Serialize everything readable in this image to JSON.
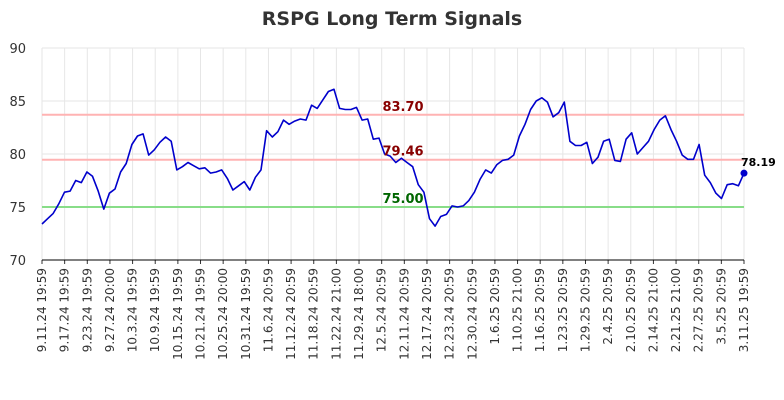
{
  "chart_data": {
    "type": "line",
    "title": "RSPG Long Term Signals",
    "xlabel": "",
    "ylabel": "",
    "ylim": [
      70,
      90
    ],
    "yticks": [
      70,
      75,
      80,
      85,
      90
    ],
    "grid": true,
    "colors": {
      "line": "#0000cc",
      "upper": "#ffb3b3",
      "lower": "#88dd88",
      "upper_label": "#880000",
      "lower_label": "#006600",
      "last_label": "#000000"
    },
    "x_tick_labels": [
      "9.11.24 19:59",
      "9.17.24 19:59",
      "9.23.24 19:59",
      "9.27.24 20:00",
      "10.3.24 19:59",
      "10.9.24 19:59",
      "10.15.24 19:59",
      "10.21.24 19:59",
      "10.25.24 20:00",
      "10.31.24 19:59",
      "11.6.24 20:59",
      "11.12.24 20:59",
      "11.18.24 20:59",
      "11.22.24 21:00",
      "11.29.24 18:00",
      "12.5.24 20:59",
      "12.11.24 20:59",
      "12.17.24 20:59",
      "12.23.24 20:59",
      "12.30.24 20:59",
      "1.6.25 20:59",
      "1.10.25 21:00",
      "1.16.25 20:59",
      "1.23.25 20:59",
      "1.29.25 20:59",
      "2.4.25 20:59",
      "2.10.25 20:59",
      "2.14.25 21:00",
      "2.21.25 21:00",
      "2.27.25 20:59",
      "3.5.25 20:59",
      "3.11.25 19:59"
    ],
    "values": [
      73.4,
      73.9,
      74.4,
      75.3,
      76.4,
      76.5,
      77.5,
      77.3,
      78.3,
      77.9,
      76.5,
      74.8,
      76.3,
      76.7,
      78.3,
      79.1,
      80.9,
      81.7,
      81.9,
      79.9,
      80.4,
      81.1,
      81.6,
      81.2,
      78.5,
      78.8,
      79.2,
      78.9,
      78.6,
      78.7,
      78.2,
      78.3,
      78.5,
      77.7,
      76.6,
      77.0,
      77.4,
      76.6,
      77.8,
      78.5,
      82.2,
      81.6,
      82.1,
      83.2,
      82.8,
      83.1,
      83.3,
      83.2,
      84.6,
      84.3,
      85.1,
      85.9,
      86.1,
      84.3,
      84.2,
      84.2,
      84.4,
      83.2,
      83.3,
      81.4,
      81.5,
      80.0,
      79.8,
      79.2,
      79.6,
      79.2,
      78.8,
      77.1,
      76.4,
      73.9,
      73.2,
      74.1,
      74.3,
      75.1,
      75.0,
      75.1,
      75.6,
      76.4,
      77.6,
      78.5,
      78.2,
      79.0,
      79.4,
      79.5,
      79.9,
      81.7,
      82.8,
      84.2,
      85.0,
      85.3,
      84.9,
      83.5,
      83.9,
      84.9,
      81.2,
      80.8,
      80.8,
      81.1,
      79.1,
      79.7,
      81.2,
      81.4,
      79.4,
      79.3,
      81.4,
      82.0,
      80.0,
      80.6,
      81.2,
      82.3,
      83.2,
      83.6,
      82.3,
      81.2,
      79.9,
      79.5,
      79.5,
      80.9,
      78.0,
      77.3,
      76.3,
      75.8,
      77.1,
      77.2,
      77.0,
      78.19
    ],
    "annotations": {
      "upper": {
        "value": 83.7,
        "label": "83.70"
      },
      "middle": {
        "value": 79.46,
        "label": "79.46"
      },
      "lower": {
        "value": 75.0,
        "label": "75.00"
      },
      "last": {
        "value": 78.19,
        "label": "78.19"
      }
    }
  }
}
